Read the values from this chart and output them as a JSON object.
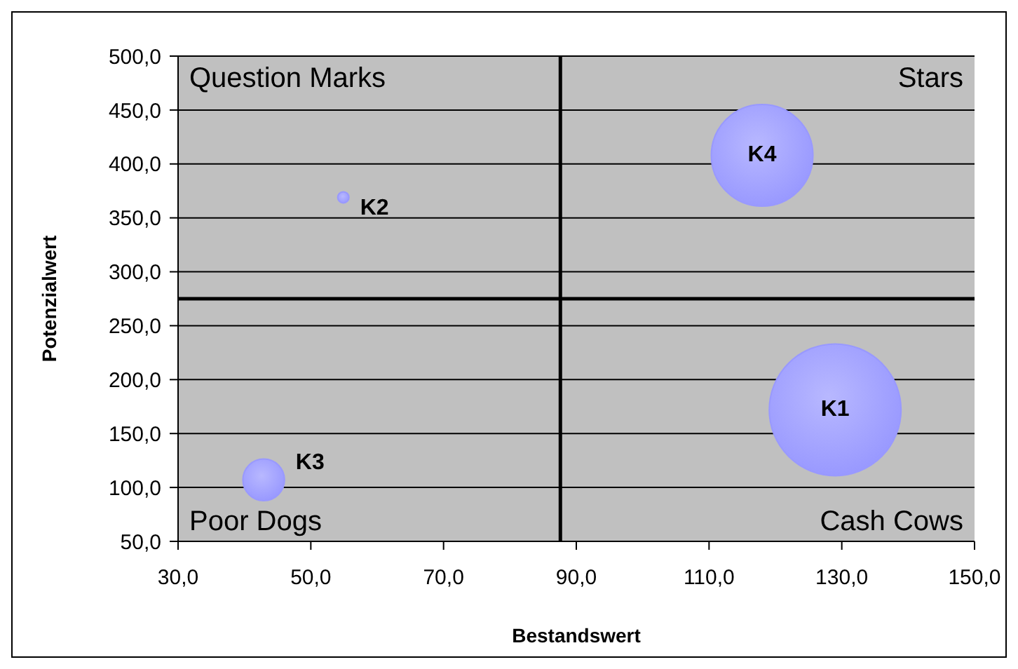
{
  "chart_data": {
    "type": "bubble",
    "xlabel": "Bestandswert",
    "ylabel": "Potenzialwert",
    "x": [
      129,
      54.9,
      42.9,
      118
    ],
    "series": [
      {
        "color": "#9999ff",
        "values": [
          172,
          369,
          107,
          408
        ],
        "sizes": [
          1,
          0.0073,
          0.1,
          0.595
        ]
      }
    ],
    "xlim": [
      30,
      150
    ],
    "ylim": [
      50,
      500
    ],
    "xticks": [
      {
        "value": 30,
        "label": "30,0"
      },
      {
        "value": 50,
        "label": "50,0"
      },
      {
        "value": 70,
        "label": "70,0"
      },
      {
        "value": 90,
        "label": "90,0"
      },
      {
        "value": 110,
        "label": "110,0"
      },
      {
        "value": 130,
        "label": "130,0"
      },
      {
        "value": 150,
        "label": "150,0"
      }
    ],
    "yticks": [
      {
        "value": 50,
        "label": "50,0"
      },
      {
        "value": 100,
        "label": "100,0"
      },
      {
        "value": 150,
        "label": "150,0"
      },
      {
        "value": 200,
        "label": "200,0"
      },
      {
        "value": 250,
        "label": "250,0"
      },
      {
        "value": 300,
        "label": "300,0"
      },
      {
        "value": 350,
        "label": "350,0"
      },
      {
        "value": 400,
        "label": "400,0"
      },
      {
        "value": 450,
        "label": "450,0"
      },
      {
        "value": 500,
        "label": "500,0"
      }
    ],
    "grid": "y",
    "legend": false,
    "marker": "circle",
    "ref_lines": [
      {
        "axis": "x",
        "value": 87.6,
        "color": "#000000"
      },
      {
        "axis": "y",
        "value": 275,
        "color": "#000000"
      }
    ],
    "annotations": [
      "Question Marks",
      "Stars",
      "Poor Dogs",
      "Cash Cows",
      {
        "text": "K1",
        "x": 129,
        "y": 172
      },
      {
        "text": "K2",
        "x": 54.9,
        "y": 369
      },
      {
        "text": "K3",
        "x": 42.9,
        "y": 107
      },
      {
        "text": "K4",
        "x": 118,
        "y": 408
      }
    ]
  }
}
